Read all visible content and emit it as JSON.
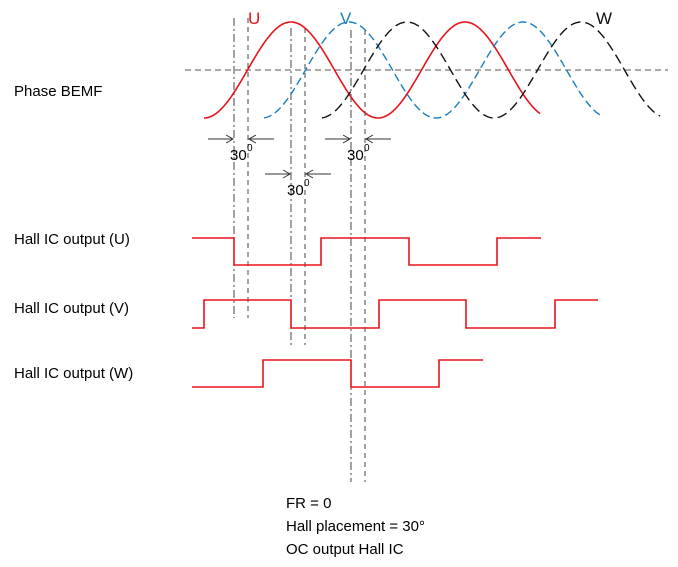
{
  "labels": {
    "phase_bemf": "Phase BEMF",
    "hall_u": "Hall IC output (U)",
    "hall_v": "Hall IC output (V)",
    "hall_w": "Hall IC output (W)"
  },
  "phases": {
    "u": "U",
    "v": "V",
    "w": "W"
  },
  "annotations": {
    "angle_1": "30",
    "angle_2": "30",
    "angle_3": "30",
    "angle_sup": "0"
  },
  "footer": {
    "line1": "FR = 0",
    "line2": "Hall placement = 30°",
    "line3": "OC output Hall IC"
  },
  "colors": {
    "u": "#e8141c",
    "v": "#1a7fbe",
    "w": "#111111",
    "signal": "#e8141c",
    "guide": "#555555"
  }
}
